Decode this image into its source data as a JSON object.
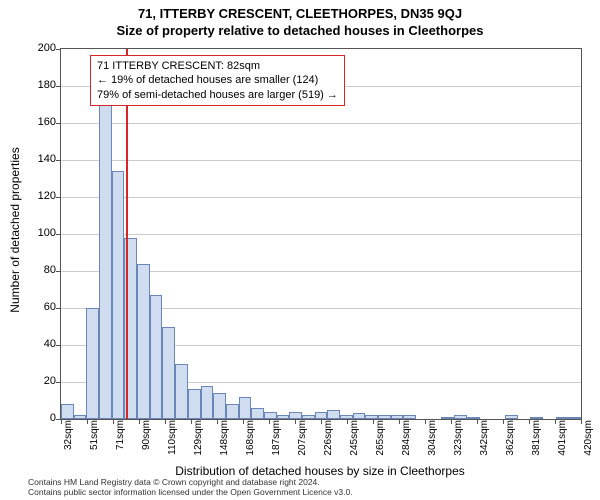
{
  "title_main": "71, ITTERBY CRESCENT, CLEETHORPES, DN35 9QJ",
  "title_sub": "Size of property relative to detached houses in Cleethorpes",
  "y_axis_label": "Number of detached properties",
  "x_axis_label": "Distribution of detached houses by size in Cleethorpes",
  "annotation": {
    "line1": "71 ITTERBY CRESCENT: 82sqm",
    "line2": "← 19% of detached houses are smaller (124)",
    "line3": "79% of semi-detached houses are larger (519) →"
  },
  "footer": {
    "line1": "Contains HM Land Registry data © Crown copyright and database right 2024.",
    "line2": "Contains public sector information licensed under the Open Government Licence v3.0."
  },
  "chart": {
    "type": "histogram",
    "ylim": [
      0,
      200
    ],
    "ytick_step": 20,
    "y_ticks": [
      0,
      20,
      40,
      60,
      80,
      100,
      120,
      140,
      160,
      180,
      200
    ],
    "x_tick_labels": [
      "32sqm",
      "51sqm",
      "71sqm",
      "90sqm",
      "110sqm",
      "129sqm",
      "148sqm",
      "168sqm",
      "187sqm",
      "207sqm",
      "226sqm",
      "245sqm",
      "265sqm",
      "284sqm",
      "304sqm",
      "323sqm",
      "342sqm",
      "362sqm",
      "381sqm",
      "401sqm",
      "420sqm"
    ],
    "bars": [
      8,
      2,
      60,
      178,
      134,
      98,
      84,
      67,
      50,
      30,
      16,
      18,
      14,
      8,
      12,
      6,
      4,
      2,
      4,
      2,
      4,
      5,
      2,
      3,
      2,
      2,
      2,
      2,
      0,
      0,
      1,
      2,
      1,
      0,
      0,
      2,
      0,
      1,
      0,
      1,
      1
    ],
    "reference_sqm": 82,
    "x_min_sqm": 32,
    "x_max_sqm": 430,
    "bar_fill": "#d0dcf0",
    "bar_border": "#6a87b8",
    "ref_line_color": "#d62728",
    "grid_color": "#cccccc",
    "background_color": "#ffffff",
    "title_fontsize": 13,
    "label_fontsize": 12,
    "tick_fontsize": 11
  }
}
